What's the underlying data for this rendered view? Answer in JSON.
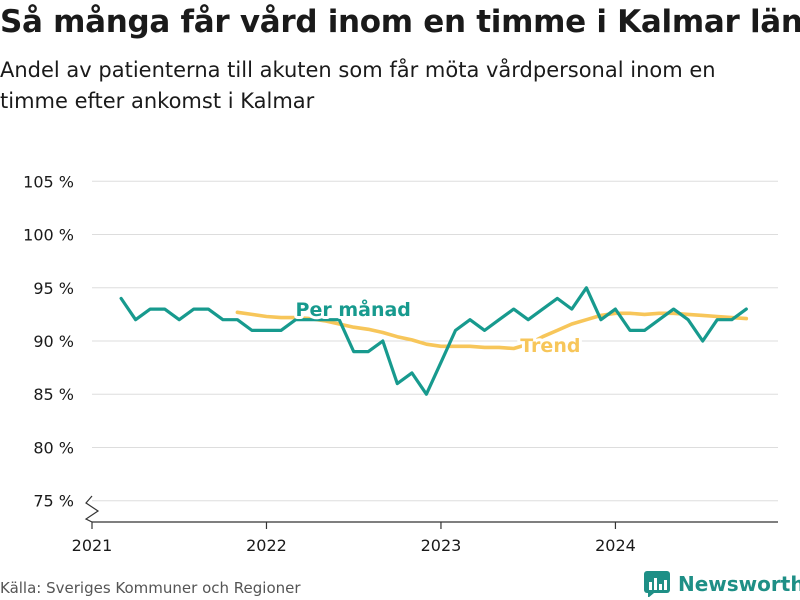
{
  "header": {
    "title": "Så många får vård inom en timme i Kalmar län",
    "subtitle": "Andel av patienterna till akuten som får möta vårdpersonal inom en timme efter ankomst i Kalmar"
  },
  "footer": {
    "source": "Källa: Sveriges Kommuner och Regioner",
    "brand": "Newsworthy",
    "brand_icon": "bar-chart-logo-icon"
  },
  "colors": {
    "monthly": "#179a8e",
    "trend": "#f7c65a",
    "grid": "#dddddd",
    "axis": "#333333"
  },
  "chart_data": {
    "type": "line",
    "title": "",
    "xlabel": "",
    "ylabel": "",
    "ylim": [
      73,
      107
    ],
    "yticks": [
      75,
      80,
      85,
      90,
      95,
      100,
      105
    ],
    "ytick_labels": [
      "75 %",
      "80 %",
      "85 %",
      "90 %",
      "95 %",
      "100 %",
      "105 %"
    ],
    "xticks": [
      "2021-01",
      "2022-01",
      "2023-01",
      "2024-01"
    ],
    "xtick_labels": [
      "2021",
      "2022",
      "2023",
      "2024"
    ],
    "y_axis_break": true,
    "grid": true,
    "series": [
      {
        "name": "Per månad",
        "color": "#179a8e",
        "x": [
          "2021-03",
          "2021-04",
          "2021-05",
          "2021-06",
          "2021-07",
          "2021-08",
          "2021-09",
          "2021-10",
          "2021-11",
          "2021-12",
          "2022-01",
          "2022-02",
          "2022-03",
          "2022-04",
          "2022-05",
          "2022-06",
          "2022-07",
          "2022-08",
          "2022-09",
          "2022-10",
          "2022-11",
          "2022-12",
          "2023-01",
          "2023-02",
          "2023-03",
          "2023-04",
          "2023-05",
          "2023-06",
          "2023-07",
          "2023-08",
          "2023-09",
          "2023-10",
          "2023-11",
          "2023-12",
          "2024-01",
          "2024-02",
          "2024-03",
          "2024-04",
          "2024-05",
          "2024-06",
          "2024-07",
          "2024-08",
          "2024-09",
          "2024-10"
        ],
        "y": [
          94,
          92,
          93,
          93,
          92,
          93,
          93,
          92,
          92,
          91,
          91,
          91,
          92,
          92,
          92,
          92,
          89,
          89,
          90,
          86,
          87,
          85,
          88,
          91,
          92,
          91,
          92,
          93,
          92,
          93,
          94,
          93,
          95,
          92,
          93,
          91,
          91,
          92,
          93,
          92,
          90,
          92,
          92,
          93
        ]
      },
      {
        "name": "Trend",
        "color": "#f7c65a",
        "x": [
          "2021-11",
          "2021-12",
          "2022-01",
          "2022-02",
          "2022-03",
          "2022-04",
          "2022-05",
          "2022-06",
          "2022-07",
          "2022-08",
          "2022-09",
          "2022-10",
          "2022-11",
          "2022-12",
          "2023-01",
          "2023-02",
          "2023-03",
          "2023-04",
          "2023-05",
          "2023-06",
          "2023-07",
          "2023-08",
          "2023-09",
          "2023-10",
          "2023-11",
          "2023-12",
          "2024-01",
          "2024-02",
          "2024-03",
          "2024-04",
          "2024-05",
          "2024-06",
          "2024-07",
          "2024-08",
          "2024-09",
          "2024-10"
        ],
        "y": [
          92.7,
          92.5,
          92.3,
          92.2,
          92.2,
          92.1,
          91.9,
          91.6,
          91.3,
          91.1,
          90.8,
          90.4,
          90.1,
          89.7,
          89.5,
          89.5,
          89.5,
          89.4,
          89.4,
          89.3,
          89.7,
          90.4,
          91.0,
          91.6,
          92.0,
          92.4,
          92.6,
          92.6,
          92.5,
          92.6,
          92.6,
          92.5,
          92.4,
          92.3,
          92.2,
          92.1
        ]
      }
    ],
    "annotations": [
      {
        "label": "Per månad",
        "series": "Per månad",
        "x": "2022-03",
        "y": 93
      },
      {
        "label": "Trend",
        "series": "Trend",
        "x": "2023-07",
        "y": 90
      }
    ]
  }
}
